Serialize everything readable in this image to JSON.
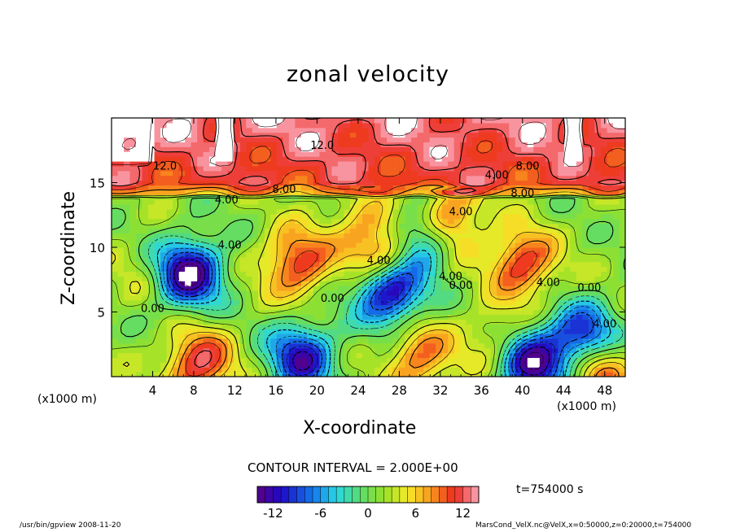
{
  "chart_data": {
    "type": "heatmap",
    "title": "zonal velocity",
    "xlabel": "X-coordinate",
    "ylabel": "Z-coordinate",
    "x_unit_left": "(x1000 m)",
    "x_unit_right": "(x1000 m)",
    "xlim": [
      0,
      50
    ],
    "ylim": [
      0,
      20
    ],
    "x_ticks": [
      4,
      8,
      12,
      16,
      20,
      24,
      28,
      32,
      36,
      40,
      44,
      48
    ],
    "y_ticks": [
      5,
      10,
      15
    ],
    "contour_interval_text": "CONTOUR INTERVAL = 2.000E+00",
    "contour_labels": [
      {
        "text": "12.0",
        "x": 5.2,
        "y": 16.0
      },
      {
        "text": "12.0",
        "x": 20.5,
        "y": 17.6
      },
      {
        "text": "4.00",
        "x": 11.2,
        "y": 13.4
      },
      {
        "text": "8.00",
        "x": 16.8,
        "y": 14.2
      },
      {
        "text": "4.00",
        "x": 37.5,
        "y": 15.3
      },
      {
        "text": "8.00",
        "x": 40.5,
        "y": 16.0
      },
      {
        "text": "8.00",
        "x": 40.0,
        "y": 13.9
      },
      {
        "text": "4.00",
        "x": 11.5,
        "y": 9.9
      },
      {
        "text": "4.00",
        "x": 26.0,
        "y": 8.7
      },
      {
        "text": "4.00",
        "x": 34.0,
        "y": 12.5
      },
      {
        "text": "0.00",
        "x": 34.0,
        "y": 6.8
      },
      {
        "text": "4.00",
        "x": 33.0,
        "y": 7.5
      },
      {
        "text": "0.00",
        "x": 21.5,
        "y": 5.8
      },
      {
        "text": "4.00",
        "x": 42.5,
        "y": 7.0
      },
      {
        "text": "0.00",
        "x": 46.5,
        "y": 6.6
      },
      {
        "text": "4.00",
        "x": 48.0,
        "y": 3.8
      },
      {
        "text": "0.00",
        "x": 4.0,
        "y": 5.0
      }
    ],
    "features": [
      {
        "x": 7.5,
        "z": 8.0,
        "u": -16
      },
      {
        "x": 18.5,
        "z": 1.5,
        "u": -13
      },
      {
        "x": 30.5,
        "z": 10.8,
        "u": -12
      },
      {
        "x": 27.0,
        "z": 6.8,
        "u": -17
      },
      {
        "x": 46.0,
        "z": 2.8,
        "u": -16
      },
      {
        "x": 41.0,
        "z": 1.0,
        "u": -15
      },
      {
        "x": 40.0,
        "z": 8.8,
        "u": 10
      },
      {
        "x": 18.0,
        "z": 8.8,
        "u": 10
      },
      {
        "x": 26.5,
        "z": 9.2,
        "u": 11
      },
      {
        "x": 8.5,
        "z": 1.0,
        "u": 11
      },
      {
        "x": 30.0,
        "z": 1.5,
        "u": 8
      },
      {
        "x": 47.0,
        "z": 1.0,
        "u": 12
      },
      {
        "x": 32.5,
        "z": 12.0,
        "u": 12
      },
      {
        "x": 37.5,
        "z": 3.0,
        "u": 4
      },
      {
        "x": 3.0,
        "z": 8.0,
        "u": 2
      },
      {
        "x": 24.0,
        "z": 12.0,
        "u": 4
      }
    ],
    "colorbar": {
      "min": -14,
      "max": 14,
      "ticks": [
        -12,
        -6,
        0,
        6,
        12
      ]
    },
    "time_label": "t=754000 s"
  },
  "footer": {
    "left": "/usr/bin/gpview  2008-11-20",
    "right": "MarsCond_VelX.nc@VelX,x=0:50000,z=0:20000,t=754000"
  }
}
